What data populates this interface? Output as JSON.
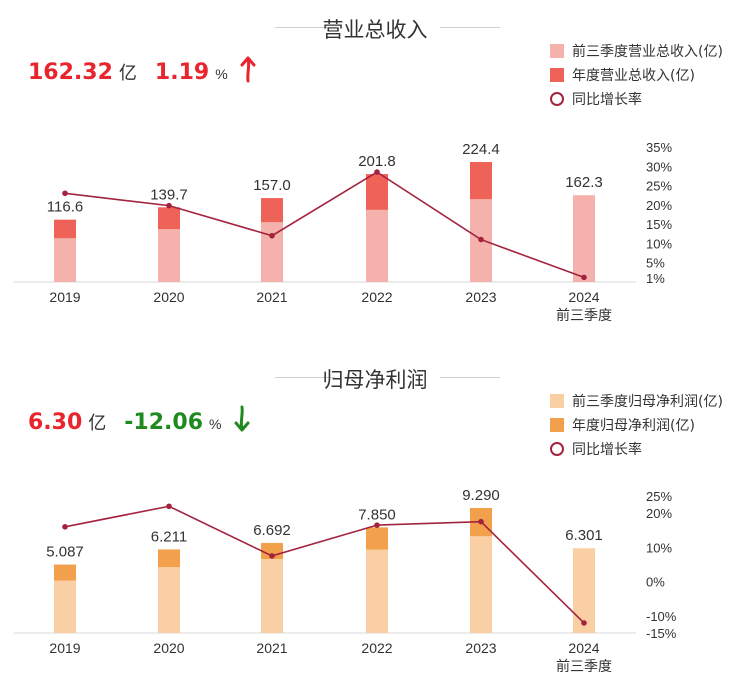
{
  "colors": {
    "revenue_part": "#f5b2ad",
    "revenue_full": "#ef6258",
    "profit_part": "#f9cfa3",
    "profit_full": "#f2a04c",
    "growth_line": "#a3233f",
    "up_red": "#e8242c",
    "down_green": "#1f8a1f"
  },
  "revenue": {
    "title": "营业总收入",
    "summary": {
      "value": "162.32",
      "unit": "亿",
      "growth": "1.19",
      "pct": "%",
      "direction": "up",
      "arrow_icon": "arrow-up-icon"
    },
    "legend": [
      "前三季度营业总收入(亿)",
      "年度营业总收入(亿)",
      "同比增长率"
    ],
    "right_axis_labels": [
      "35%",
      "30%",
      "25%",
      "20%",
      "15%",
      "10%",
      "5%",
      "1%"
    ],
    "categories": [
      "2019",
      "2020",
      "2021",
      "2022",
      "2023",
      "2024"
    ],
    "category_sublabels": [
      "",
      "",
      "",
      "",
      "",
      "前三季度"
    ],
    "value_labels": [
      "116.6",
      "139.7",
      "157.0",
      "201.8",
      "224.4",
      "162.3"
    ]
  },
  "profit": {
    "title": "归母净利润",
    "summary": {
      "value": "6.30",
      "unit": "亿",
      "growth": "-12.06",
      "pct": "%",
      "direction": "down",
      "arrow_icon": "arrow-down-icon"
    },
    "legend": [
      "前三季度归母净利润(亿)",
      "年度归母净利润(亿)",
      "同比增长率"
    ],
    "right_axis_labels": [
      "25%",
      "20%",
      "10%",
      "0%",
      "-10%",
      "-15%"
    ],
    "categories": [
      "2019",
      "2020",
      "2021",
      "2022",
      "2023",
      "2024"
    ],
    "category_sublabels": [
      "",
      "",
      "",
      "",
      "",
      "前三季度"
    ],
    "value_labels": [
      "5.087",
      "6.211",
      "6.692",
      "7.850",
      "9.290",
      "6.301"
    ]
  },
  "chart_data": [
    {
      "type": "bar",
      "title": "营业总收入",
      "categories": [
        "2019",
        "2020",
        "2021",
        "2022",
        "2023",
        "2024"
      ],
      "series": [
        {
          "name": "前三季度营业总收入(亿)",
          "values": [
            82,
            99,
            112,
            135,
            155,
            162.3
          ]
        },
        {
          "name": "年度营业总收入(亿)",
          "values": [
            116.6,
            139.7,
            157.0,
            201.8,
            224.4,
            null
          ]
        },
        {
          "name": "同比增长率",
          "values": [
            23,
            19.8,
            12,
            28.5,
            11,
            1.19
          ]
        }
      ],
      "ylim": [
        0,
        240
      ],
      "y2lim": [
        0,
        35
      ],
      "legend": "top-right",
      "grid": false
    },
    {
      "type": "bar",
      "title": "归母净利润",
      "categories": [
        "2019",
        "2020",
        "2021",
        "2022",
        "2023",
        "2024"
      ],
      "series": [
        {
          "name": "前三季度归母净利润(亿)",
          "values": [
            3.9,
            4.9,
            5.5,
            6.2,
            7.2,
            6.301
          ]
        },
        {
          "name": "年度归母净利润(亿)",
          "values": [
            5.087,
            6.211,
            6.692,
            7.85,
            9.29,
            null
          ]
        },
        {
          "name": "同比增长率",
          "values": [
            16,
            22,
            7.5,
            16.5,
            17.5,
            -12.06
          ]
        }
      ],
      "ylim": [
        0,
        10
      ],
      "y2lim": [
        -15,
        25
      ],
      "legend": "top-right",
      "grid": false
    }
  ]
}
